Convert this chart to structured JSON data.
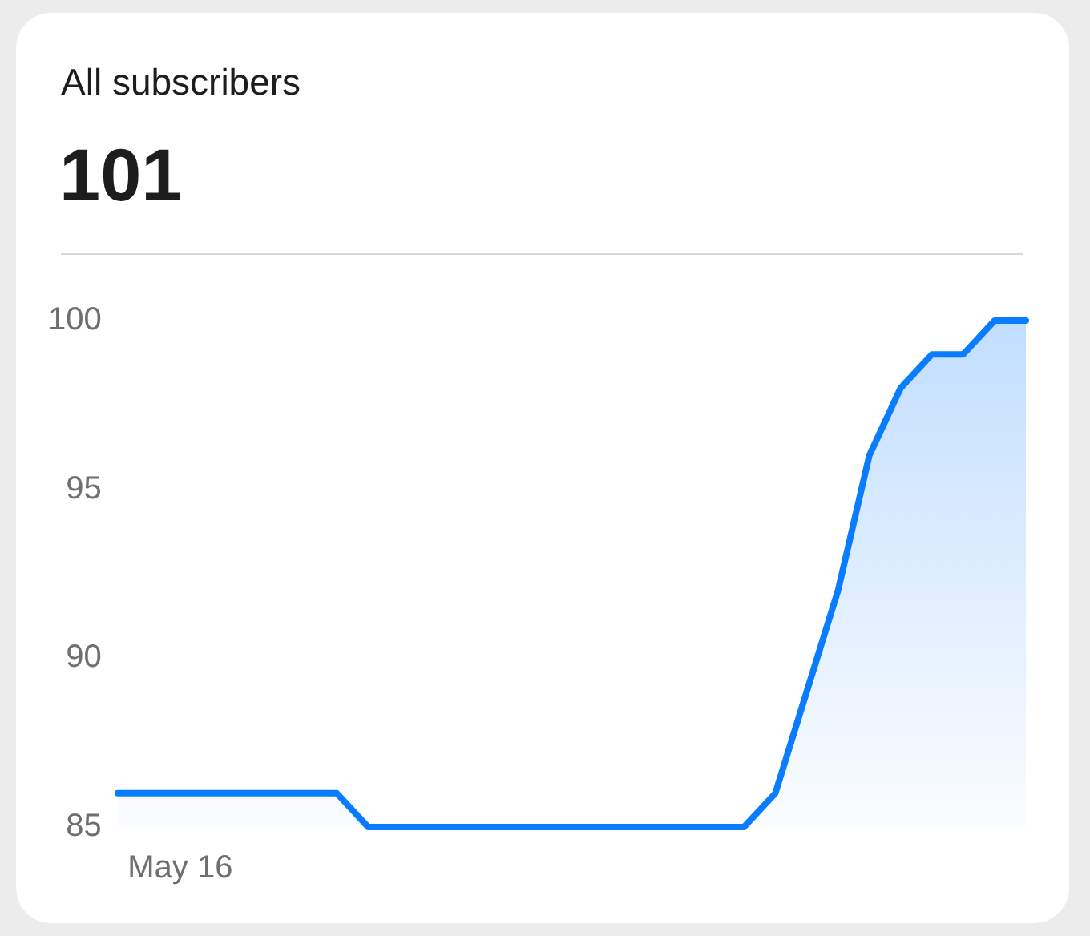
{
  "chart_data": {
    "type": "area",
    "title": "All subscribers",
    "subtitle": "101",
    "categories": [
      null,
      null,
      "May 16",
      null,
      null,
      null,
      null,
      null,
      null,
      null,
      null,
      null,
      null,
      null,
      null,
      null,
      null,
      null,
      null,
      null,
      null,
      null,
      null,
      null,
      null,
      null,
      null,
      null,
      null,
      null
    ],
    "series": [
      {
        "color": "#0a7cff",
        "values": [
          86,
          86,
          86,
          86,
          86,
          86,
          86,
          86,
          85,
          85,
          85,
          85,
          85,
          85,
          85,
          85,
          85,
          85,
          85,
          85,
          85,
          86,
          89,
          92,
          96,
          98,
          99,
          99,
          100,
          100
        ]
      }
    ],
    "ylim": [
      85,
      100
    ],
    "yticks": [
      85,
      90,
      95,
      100
    ],
    "grid": false,
    "legend": false,
    "marker": "none",
    "line_style": "solid"
  }
}
